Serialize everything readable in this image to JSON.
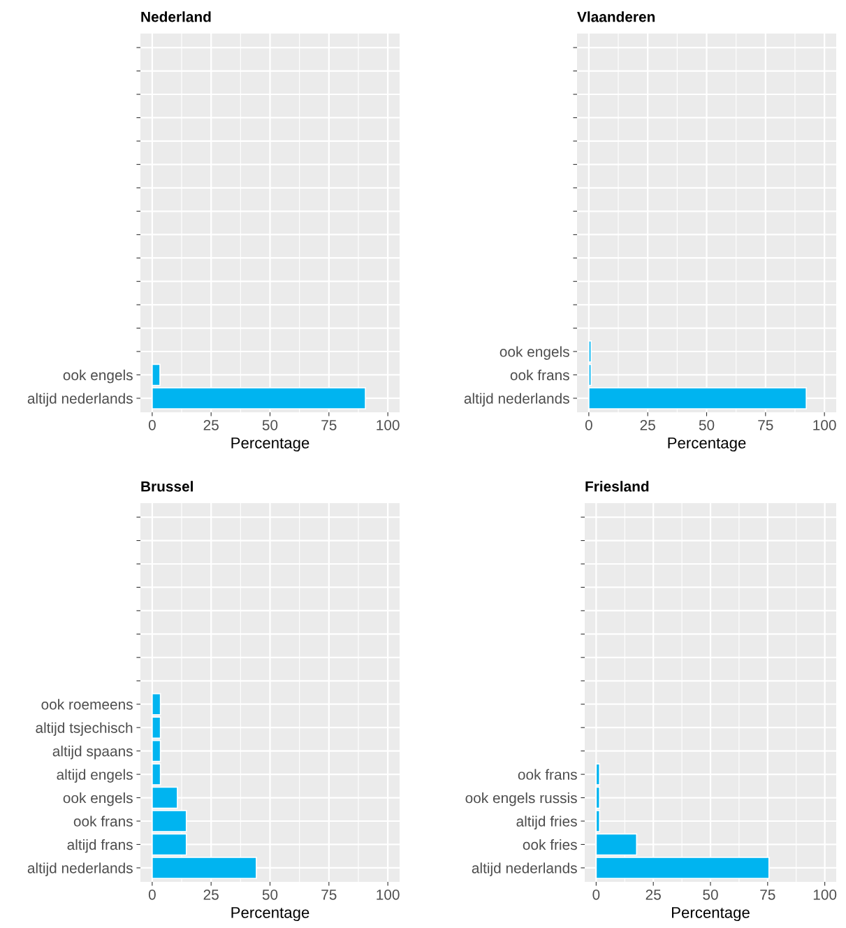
{
  "chart_data": [
    {
      "type": "bar",
      "orientation": "horizontal",
      "title": "Nederland",
      "xlabel": "Percentage",
      "color": "#00b4f0",
      "grid": true,
      "categories": [
        null,
        null,
        null,
        null,
        null,
        null,
        null,
        null,
        null,
        null,
        null,
        null,
        null,
        null,
        "ook engels",
        "altijd nederlands"
      ],
      "values": [
        null,
        null,
        null,
        null,
        null,
        null,
        null,
        null,
        null,
        null,
        null,
        null,
        null,
        null,
        3.3,
        90.5
      ],
      "xlim": [
        -5,
        105
      ],
      "xticks": [
        0,
        25,
        50,
        75,
        100
      ]
    },
    {
      "type": "bar",
      "orientation": "horizontal",
      "title": "Vlaanderen",
      "xlabel": "Percentage",
      "color": "#00b4f0",
      "grid": true,
      "categories": [
        null,
        null,
        null,
        null,
        null,
        null,
        null,
        null,
        null,
        null,
        null,
        null,
        null,
        "ook engels",
        "ook frans",
        "altijd nederlands"
      ],
      "values": [
        null,
        null,
        null,
        null,
        null,
        null,
        null,
        null,
        null,
        null,
        null,
        null,
        null,
        1,
        1,
        92.3
      ],
      "xlim": [
        -5,
        105
      ],
      "xticks": [
        0,
        25,
        50,
        75,
        100
      ]
    },
    {
      "type": "bar",
      "orientation": "horizontal",
      "title": "Brussel",
      "xlabel": "Percentage",
      "color": "#00b4f0",
      "grid": true,
      "categories": [
        null,
        null,
        null,
        null,
        null,
        null,
        null,
        null,
        "ook roemeens",
        "altijd tsjechisch",
        "altijd spaans",
        "altijd engels",
        "ook engels",
        "ook frans",
        "altijd frans",
        "altijd nederlands"
      ],
      "values": [
        null,
        null,
        null,
        null,
        null,
        null,
        null,
        null,
        3.5,
        3.5,
        3.5,
        3.5,
        10.7,
        14.5,
        14.5,
        44.2
      ],
      "xlim": [
        -5,
        105
      ],
      "xticks": [
        0,
        25,
        50,
        75,
        100
      ]
    },
    {
      "type": "bar",
      "orientation": "horizontal",
      "title": "Friesland",
      "xlabel": "Percentage",
      "color": "#00b4f0",
      "grid": true,
      "categories": [
        null,
        null,
        null,
        null,
        null,
        null,
        null,
        null,
        null,
        null,
        null,
        "ook frans",
        "ook engels russis",
        "altijd fries",
        "ook fries",
        "altijd nederlands"
      ],
      "values": [
        null,
        null,
        null,
        null,
        null,
        null,
        null,
        null,
        null,
        null,
        null,
        1.5,
        1.5,
        1.5,
        17.7,
        75.6
      ],
      "xlim": [
        -5,
        105
      ],
      "xticks": [
        0,
        25,
        50,
        75,
        100
      ]
    }
  ]
}
